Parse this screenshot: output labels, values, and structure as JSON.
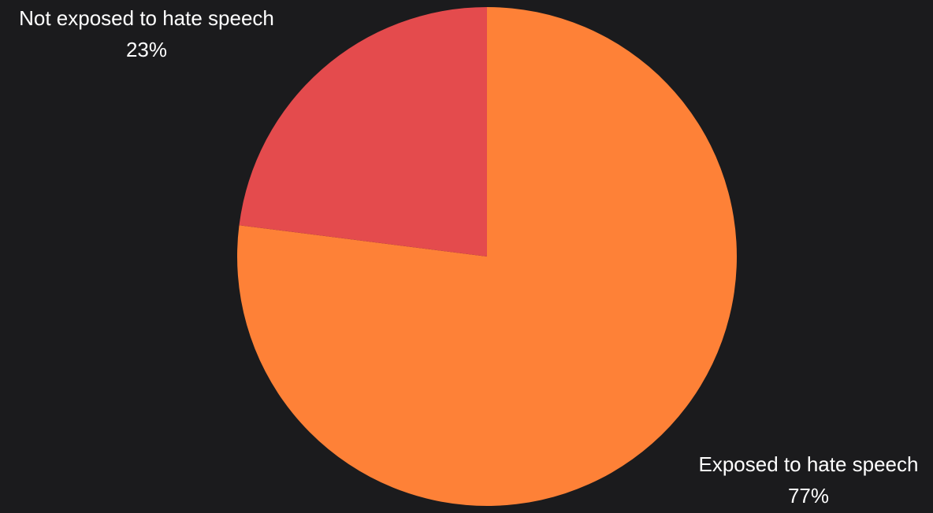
{
  "chart_data": {
    "type": "pie",
    "slices": [
      {
        "label": "Exposed to hate speech",
        "value": 77,
        "value_label": "77%",
        "color": "#fe8137"
      },
      {
        "label": "Not exposed to hate speech",
        "value": 23,
        "value_label": "23%",
        "color": "#e44b4d"
      }
    ],
    "start": "top",
    "direction": "clockwise",
    "background": "#1b1b1d"
  }
}
